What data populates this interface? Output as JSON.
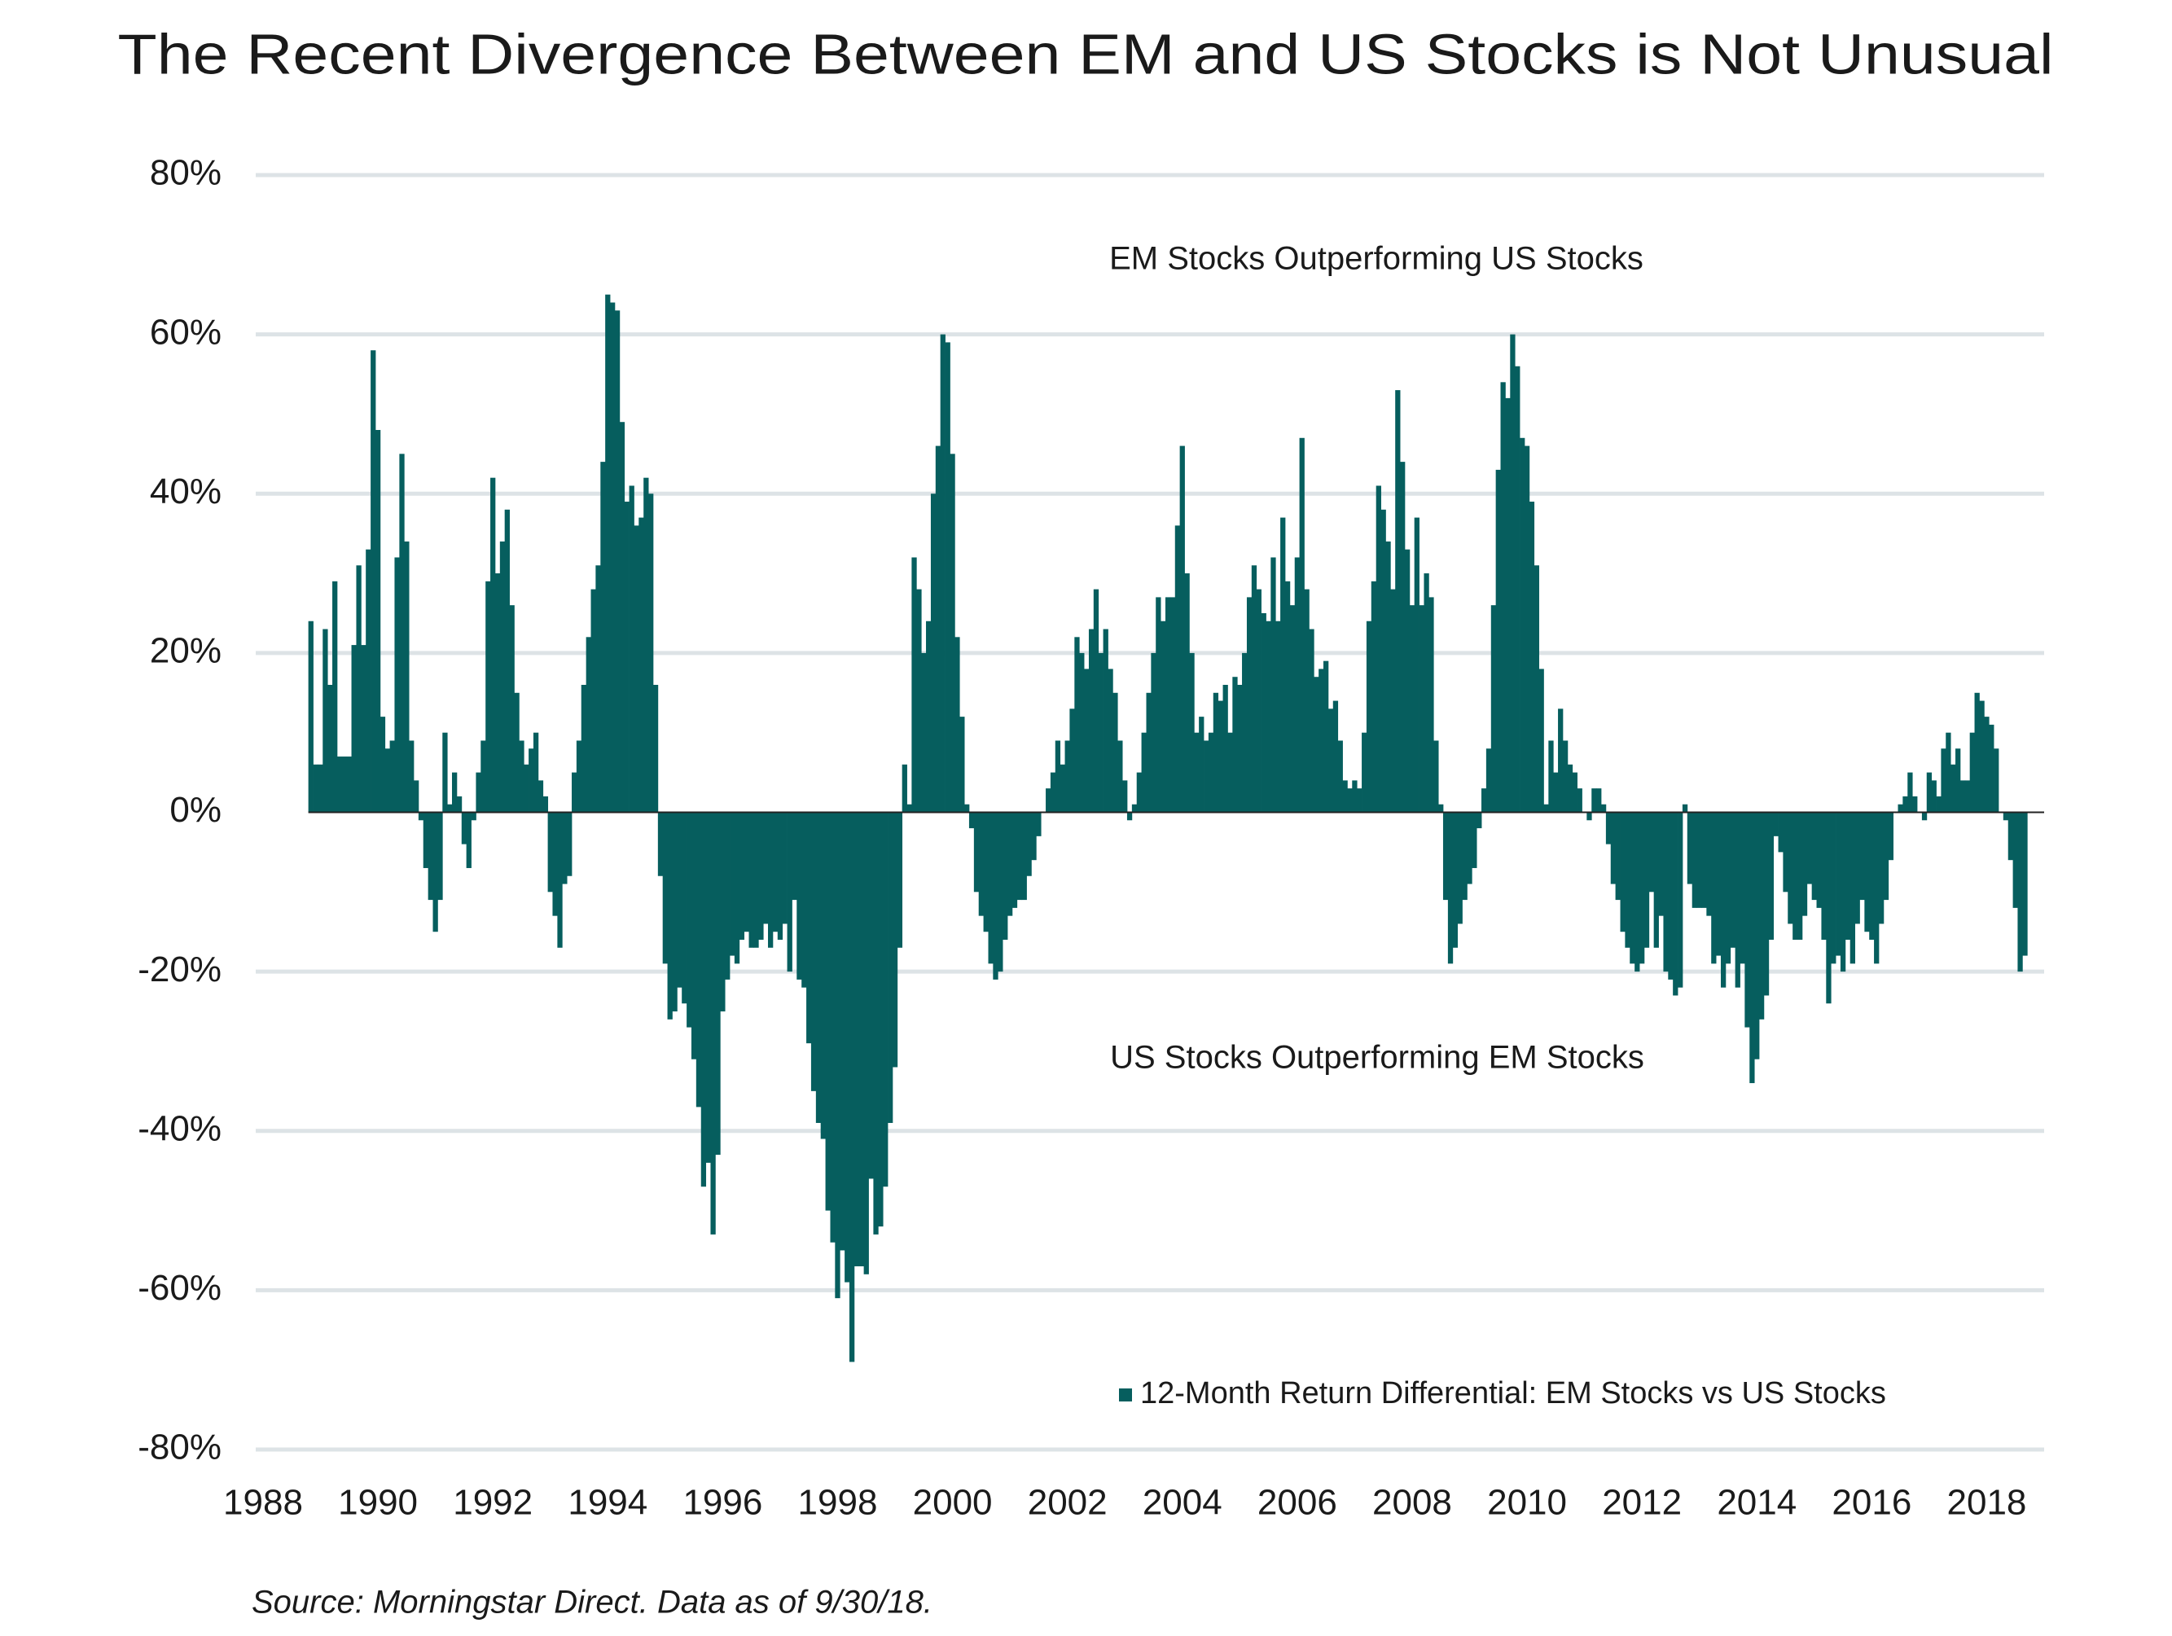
{
  "chart_data": {
    "type": "bar",
    "title": "The Recent Divergence Between EM and US Stocks is Not Unusual",
    "source": "Source: Morningstar Direct. Data as of 9/30/18.",
    "annotations": [
      "EM Stocks Outperforming US Stocks",
      "US Stocks Outperforming EM Stocks"
    ],
    "legend": "bottom-right",
    "grid": true,
    "xlim": [
      1988,
      2019
    ],
    "xticks": [
      1988,
      1990,
      1992,
      1994,
      1996,
      1998,
      2000,
      2002,
      2004,
      2006,
      2008,
      2010,
      2012,
      2014,
      2016,
      2018
    ],
    "ylim": [
      -80,
      80
    ],
    "yticks": [
      {
        "value": 80,
        "label": "80%"
      },
      {
        "value": 60,
        "label": "60%"
      },
      {
        "value": 40,
        "label": "40%"
      },
      {
        "value": 20,
        "label": "20%"
      },
      {
        "value": 0,
        "label": "0%"
      },
      {
        "value": -20,
        "label": "-20%"
      },
      {
        "value": -40,
        "label": "-40%"
      },
      {
        "value": -60,
        "label": "-60%"
      },
      {
        "value": -80,
        "label": "-80%"
      }
    ],
    "x": [
      1988.833,
      1988.917,
      1989,
      1989.083,
      1989.167,
      1989.25,
      1989.333,
      1989.417,
      1989.5,
      1989.583,
      1989.667,
      1989.75,
      1989.833,
      1989.917,
      1990,
      1990.083,
      1990.167,
      1990.25,
      1990.333,
      1990.417,
      1990.5,
      1990.583,
      1990.667,
      1990.75,
      1990.833,
      1990.917,
      1991,
      1991.083,
      1991.167,
      1991.25,
      1991.333,
      1991.417,
      1991.5,
      1991.583,
      1991.667,
      1991.75,
      1991.833,
      1991.917,
      1992,
      1992.083,
      1992.167,
      1992.25,
      1992.333,
      1992.417,
      1992.5,
      1992.583,
      1992.667,
      1992.75,
      1992.833,
      1992.917,
      1993,
      1993.083,
      1993.167,
      1993.25,
      1993.333,
      1993.417,
      1993.5,
      1993.583,
      1993.667,
      1993.75,
      1993.833,
      1993.917,
      1994,
      1994.083,
      1994.167,
      1994.25,
      1994.333,
      1994.417,
      1994.5,
      1994.583,
      1994.667,
      1994.75,
      1994.833,
      1994.917,
      1995,
      1995.083,
      1995.167,
      1995.25,
      1995.333,
      1995.417,
      1995.5,
      1995.583,
      1995.667,
      1995.75,
      1995.833,
      1995.917,
      1996,
      1996.083,
      1996.167,
      1996.25,
      1996.333,
      1996.417,
      1996.5,
      1996.583,
      1996.667,
      1996.75,
      1996.833,
      1996.917,
      1997,
      1997.083,
      1997.167,
      1997.25,
      1997.333,
      1997.417,
      1997.5,
      1997.583,
      1997.667,
      1997.75,
      1997.833,
      1997.917,
      1998,
      1998.083,
      1998.167,
      1998.25,
      1998.333,
      1998.417,
      1998.5,
      1998.583,
      1998.667,
      1998.75,
      1998.833,
      1998.917,
      1999,
      1999.083,
      1999.167,
      1999.25,
      1999.333,
      1999.417,
      1999.5,
      1999.583,
      1999.667,
      1999.75,
      1999.833,
      1999.917,
      2000,
      2000.083,
      2000.167,
      2000.25,
      2000.333,
      2000.417,
      2000.5,
      2000.583,
      2000.667,
      2000.75,
      2000.833,
      2000.917,
      2001,
      2001.083,
      2001.167,
      2001.25,
      2001.333,
      2001.417,
      2001.5,
      2001.583,
      2001.667,
      2001.75,
      2001.833,
      2001.917,
      2002,
      2002.083,
      2002.167,
      2002.25,
      2002.333,
      2002.417,
      2002.5,
      2002.583,
      2002.667,
      2002.75,
      2002.833,
      2002.917,
      2003,
      2003.083,
      2003.167,
      2003.25,
      2003.333,
      2003.417,
      2003.5,
      2003.583,
      2003.667,
      2003.75,
      2003.833,
      2003.917,
      2004,
      2004.083,
      2004.167,
      2004.25,
      2004.333,
      2004.417,
      2004.5,
      2004.583,
      2004.667,
      2004.75,
      2004.833,
      2004.917,
      2005,
      2005.083,
      2005.167,
      2005.25,
      2005.333,
      2005.417,
      2005.5,
      2005.583,
      2005.667,
      2005.75,
      2005.833,
      2005.917,
      2006,
      2006.083,
      2006.167,
      2006.25,
      2006.333,
      2006.417,
      2006.5,
      2006.583,
      2006.667,
      2006.75,
      2006.833,
      2006.917,
      2007,
      2007.083,
      2007.167,
      2007.25,
      2007.333,
      2007.417,
      2007.5,
      2007.583,
      2007.667,
      2007.75,
      2007.833,
      2007.917,
      2008,
      2008.083,
      2008.167,
      2008.25,
      2008.333,
      2008.417,
      2008.5,
      2008.583,
      2008.667,
      2008.75,
      2008.833,
      2008.917,
      2009,
      2009.083,
      2009.167,
      2009.25,
      2009.333,
      2009.417,
      2009.5,
      2009.583,
      2009.667,
      2009.75,
      2009.833,
      2009.917,
      2010,
      2010.083,
      2010.167,
      2010.25,
      2010.333,
      2010.417,
      2010.5,
      2010.583,
      2010.667,
      2010.75,
      2010.833,
      2010.917,
      2011,
      2011.083,
      2011.167,
      2011.25,
      2011.333,
      2011.417,
      2011.5,
      2011.583,
      2011.667,
      2011.75,
      2011.833,
      2011.917,
      2012,
      2012.083,
      2012.167,
      2012.25,
      2012.333,
      2012.417,
      2012.5,
      2012.583,
      2012.667,
      2012.75,
      2012.833,
      2012.917,
      2013,
      2013.083,
      2013.167,
      2013.25,
      2013.333,
      2013.417,
      2013.5,
      2013.583,
      2013.667,
      2013.75,
      2013.833,
      2013.917,
      2014,
      2014.083,
      2014.167,
      2014.25,
      2014.333,
      2014.417,
      2014.5,
      2014.583,
      2014.667,
      2014.75,
      2014.833,
      2014.917,
      2015,
      2015.083,
      2015.167,
      2015.25,
      2015.333,
      2015.417,
      2015.5,
      2015.583,
      2015.667,
      2015.75,
      2015.833,
      2015.917,
      2016,
      2016.083,
      2016.167,
      2016.25,
      2016.333,
      2016.417,
      2016.5,
      2016.583,
      2016.667,
      2016.75,
      2016.833,
      2016.917,
      2017,
      2017.083,
      2017.167,
      2017.25,
      2017.333,
      2017.417,
      2017.5,
      2017.583,
      2017.667,
      2017.75,
      2017.833,
      2017.917,
      2018,
      2018.083,
      2018.167,
      2018.25,
      2018.333,
      2018.417,
      2018.5,
      2018.583,
      2018.667
    ],
    "series": [
      {
        "name": "12-Month Return Differential: EM Stocks vs US Stocks",
        "color": "#065e5e",
        "values": [
          24,
          6,
          6,
          23,
          16,
          29,
          7,
          7,
          7,
          21,
          31,
          21,
          33,
          58,
          48,
          12,
          8,
          9,
          32,
          45,
          34,
          9,
          4,
          -1,
          -7,
          -11,
          -15,
          -11,
          10,
          1,
          5,
          2,
          -4,
          -7,
          -1,
          5,
          9,
          29,
          42,
          30,
          34,
          38,
          26,
          15,
          9,
          6,
          8,
          10,
          4,
          2,
          -10,
          -13,
          -17,
          -9,
          -8,
          5,
          9,
          16,
          22,
          28,
          31,
          44,
          65,
          64,
          63,
          49,
          39,
          41,
          36,
          37,
          42,
          40,
          16,
          -8,
          -19,
          -26,
          -25,
          -22,
          -24,
          -27,
          -31,
          -37,
          -47,
          -44,
          -53,
          -43,
          -25,
          -21,
          -18,
          -19,
          -16,
          -15,
          -17,
          -17,
          -16,
          -14,
          -17,
          -15,
          -16,
          -14,
          -20,
          -11,
          -21,
          -22,
          -29,
          -35,
          -39,
          -41,
          -50,
          -54,
          -61,
          -55,
          -59,
          -69,
          -57,
          -57,
          -58,
          -46,
          -53,
          -52,
          -47,
          -39,
          -32,
          -17,
          6,
          1,
          32,
          28,
          20,
          24,
          40,
          46,
          60,
          59,
          45,
          22,
          12,
          1,
          -2,
          -10,
          -13,
          -15,
          -19,
          -21,
          -20,
          -16,
          -13,
          -12,
          -11,
          -11,
          -8,
          -6,
          -3,
          0,
          3,
          5,
          9,
          6,
          9,
          13,
          22,
          20,
          18,
          23,
          28,
          20,
          23,
          18,
          15,
          9,
          4,
          -1,
          1,
          5,
          10,
          15,
          20,
          27,
          24,
          27,
          27,
          36,
          46,
          30,
          20,
          10,
          12,
          9,
          10,
          15,
          14,
          16,
          10,
          17,
          16,
          20,
          27,
          31,
          28,
          25,
          24,
          32,
          24,
          37,
          29,
          26,
          32,
          47,
          28,
          23,
          17,
          18,
          19,
          13,
          14,
          9,
          4,
          3,
          4,
          3,
          10,
          24,
          29,
          41,
          38,
          34,
          28,
          53,
          44,
          33,
          26,
          37,
          26,
          30,
          27,
          9,
          1,
          -11,
          -19,
          -17,
          -14,
          -11,
          -9,
          -7,
          -2,
          3,
          8,
          26,
          43,
          54,
          52,
          60,
          56,
          47,
          46,
          39,
          31,
          18,
          1,
          9,
          5,
          13,
          9,
          6,
          5,
          3,
          0,
          -1,
          3,
          3,
          1,
          -4,
          -9,
          -11,
          -15,
          -17,
          -19,
          -20,
          -19,
          -17,
          -10,
          -17,
          -13,
          -20,
          -21,
          -23,
          -22,
          1,
          -9,
          -12,
          -12,
          -12,
          -13,
          -19,
          -18,
          -22,
          -19,
          -17,
          -22,
          -19,
          -27,
          -34,
          -31,
          -26,
          -23,
          -16,
          -3,
          -5,
          -10,
          -14,
          -16,
          -16,
          -13,
          -9,
          -11,
          -12,
          -16,
          -24,
          -19,
          -18,
          -20,
          -16,
          -19,
          -14,
          -11,
          -15,
          -16,
          -19,
          -14,
          -11,
          -6,
          0,
          1,
          2,
          5,
          2,
          0,
          -1,
          5,
          4,
          2,
          8,
          10,
          6,
          8,
          4,
          4,
          10,
          15,
          14,
          12,
          11,
          8,
          0,
          -1,
          -6,
          -12,
          -20,
          -18
        ]
      }
    ]
  }
}
